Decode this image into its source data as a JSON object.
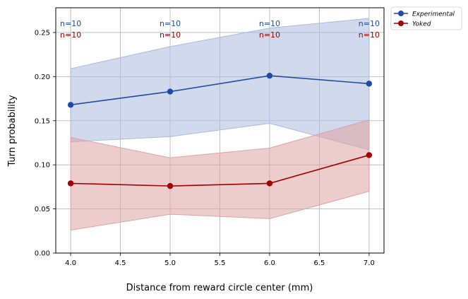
{
  "chart_data": {
    "type": "line",
    "xlabel": "Distance from reward circle center (mm)",
    "ylabel": "Turn probability",
    "xlim": [
      3.85,
      7.15
    ],
    "ylim": [
      0.0,
      0.278
    ],
    "xticks": [
      4.0,
      4.5,
      5.0,
      5.5,
      6.0,
      6.5,
      7.0
    ],
    "xtick_labels": [
      "4.0",
      "4.5",
      "5.0",
      "5.5",
      "6.0",
      "6.5",
      "7.0"
    ],
    "yticks": [
      0.0,
      0.05,
      0.1,
      0.15,
      0.2,
      0.25
    ],
    "ytick_labels": [
      "0.00",
      "0.05",
      "0.10",
      "0.15",
      "0.20",
      "0.25"
    ],
    "grid": true,
    "legend_position": "outside-top-right",
    "x": [
      4.0,
      5.0,
      6.0,
      7.0
    ],
    "series": [
      {
        "name": "Experimental",
        "color": "#1f4aa8",
        "band_color": "#aabbdd",
        "values": [
          0.168,
          0.183,
          0.201,
          0.192
        ],
        "lower": [
          0.126,
          0.132,
          0.147,
          0.117
        ],
        "upper": [
          0.209,
          0.234,
          0.255,
          0.266
        ],
        "n_labels": [
          "n=10",
          "n=10",
          "n=10",
          "n=10"
        ]
      },
      {
        "name": "Yoked",
        "color": "#a00000",
        "band_color": "#dea3a3",
        "values": [
          0.079,
          0.076,
          0.079,
          0.111
        ],
        "lower": [
          0.026,
          0.044,
          0.039,
          0.07
        ],
        "upper": [
          0.131,
          0.108,
          0.119,
          0.151
        ],
        "n_labels": [
          "n=10",
          "n=10",
          "n=10",
          "n=10"
        ]
      }
    ]
  }
}
